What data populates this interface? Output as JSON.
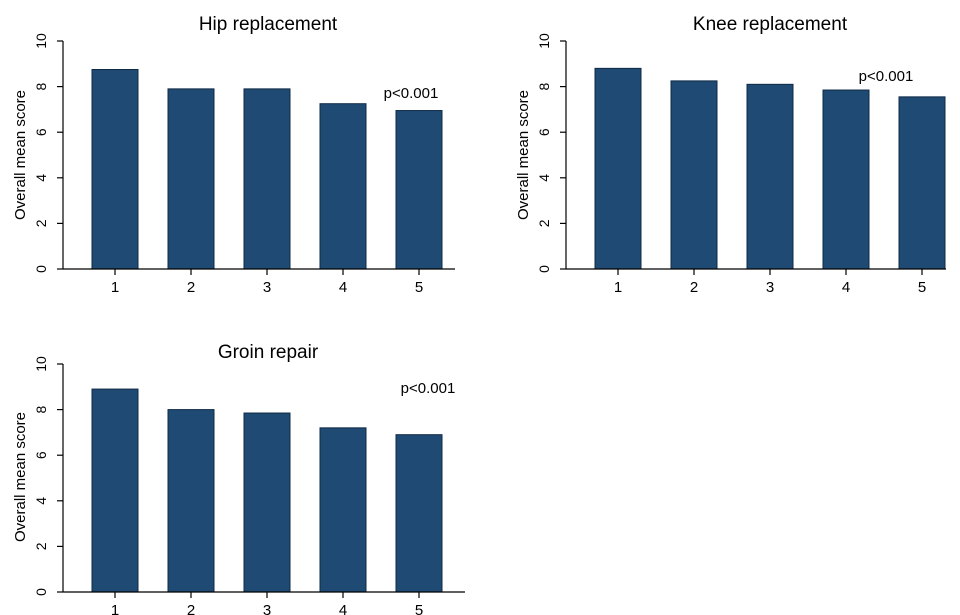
{
  "colors": {
    "bar": "#1f4a73",
    "axis": "#000000",
    "background": "#ffffff"
  },
  "chart_data": [
    {
      "type": "bar",
      "title": "Hip replacement",
      "ylabel": "Overall mean score",
      "xlabel": "",
      "ylim": [
        0,
        10
      ],
      "yticks": [
        "0",
        "2",
        "4",
        "6",
        "8",
        "10"
      ],
      "categories": [
        "1",
        "2",
        "3",
        "4",
        "5"
      ],
      "values": [
        8.75,
        7.9,
        7.9,
        7.25,
        6.95
      ],
      "annotation": "p<0.001",
      "grid": false
    },
    {
      "type": "bar",
      "title": "Knee replacement",
      "ylabel": "Overall mean score",
      "xlabel": "",
      "ylim": [
        0,
        10
      ],
      "yticks": [
        "0",
        "2",
        "4",
        "6",
        "8",
        "10"
      ],
      "categories": [
        "1",
        "2",
        "3",
        "4",
        "5"
      ],
      "values": [
        8.8,
        8.25,
        8.1,
        7.85,
        7.55
      ],
      "annotation": "p<0.001",
      "grid": false
    },
    {
      "type": "bar",
      "title": "Groin repair",
      "ylabel": "Overall mean score",
      "xlabel": "",
      "ylim": [
        0,
        10
      ],
      "yticks": [
        "0",
        "2",
        "4",
        "6",
        "8",
        "10"
      ],
      "categories": [
        "1",
        "2",
        "3",
        "4",
        "5"
      ],
      "values": [
        8.9,
        8.0,
        7.85,
        7.2,
        6.9
      ],
      "annotation": "p<0.001",
      "grid": false
    }
  ]
}
